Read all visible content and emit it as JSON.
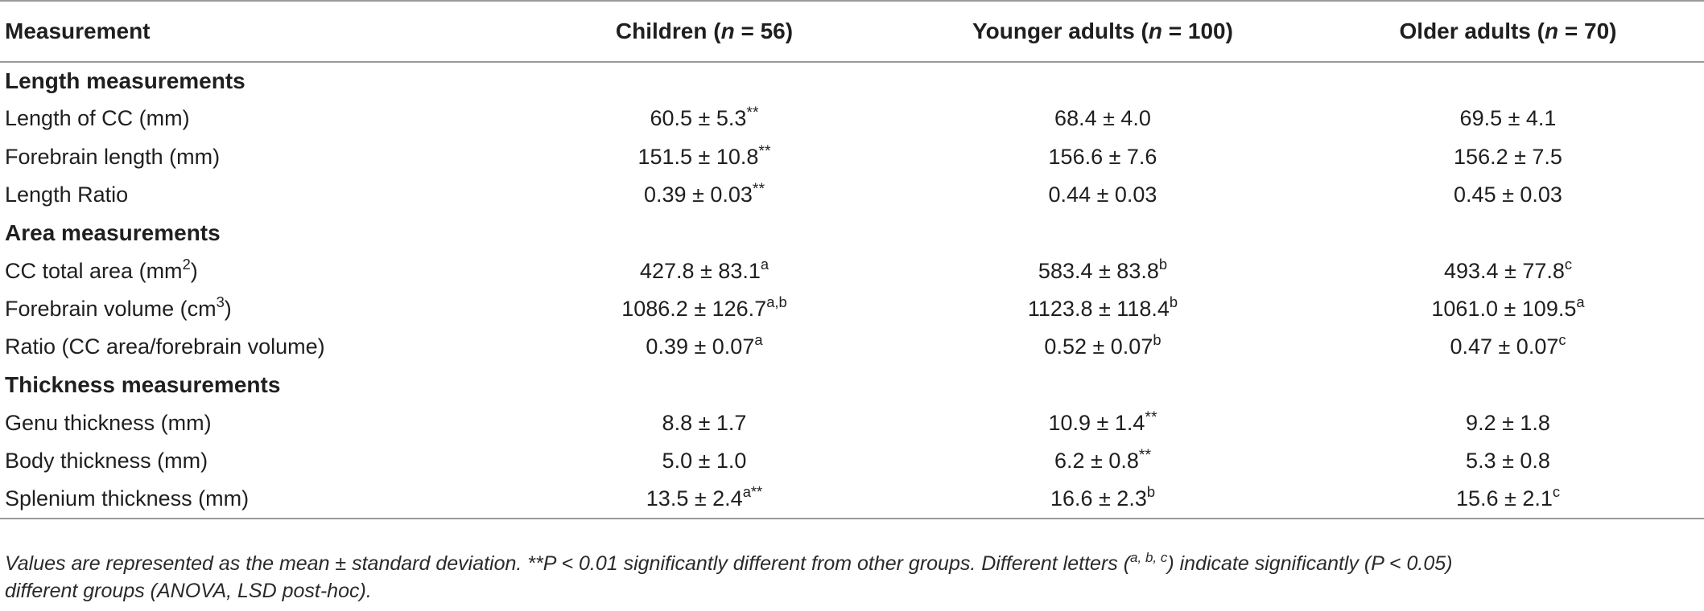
{
  "header": {
    "measurement": "Measurement",
    "children": "Children (",
    "children_n": "n",
    "children_count": " = 56)",
    "younger": "Younger adults (",
    "younger_n": "n",
    "younger_count": " = 100)",
    "older": "Older adults (",
    "older_n": "n",
    "older_count": " = 70)"
  },
  "sections": {
    "length": "Length measurements",
    "area": "Area measurements",
    "thickness": "Thickness measurements"
  },
  "rows": {
    "length_cc": {
      "label": "Length of CC (mm)",
      "children": "60.5 ± 5.3",
      "children_sup": "**",
      "younger": "68.4 ± 4.0",
      "older": "69.5 ± 4.1"
    },
    "forebrain_length": {
      "label": "Forebrain length (mm)",
      "children": "151.5 ± 10.8",
      "children_sup": "**",
      "younger": "156.6 ± 7.6",
      "older": "156.2 ± 7.5"
    },
    "length_ratio": {
      "label": "Length Ratio",
      "children": "0.39 ± 0.03",
      "children_sup": "**",
      "younger": "0.44 ± 0.03",
      "older": "0.45 ± 0.03"
    },
    "cc_total_area": {
      "label": "CC total area (mm",
      "label_sup": "2",
      "label_end": ")",
      "children": "427.8 ± 83.1",
      "children_sup": "a",
      "younger": "583.4 ± 83.8",
      "younger_sup": "b",
      "older": "493.4 ± 77.8",
      "older_sup": "c"
    },
    "forebrain_volume": {
      "label": "Forebrain volume (cm",
      "label_sup": "3",
      "label_end": ")",
      "children": "1086.2 ± 126.7",
      "children_sup": "a,b",
      "younger": "1123.8 ± 118.4",
      "younger_sup": "b",
      "older": "1061.0 ± 109.5",
      "older_sup": "a"
    },
    "area_ratio": {
      "label": "Ratio (CC area/forebrain volume)",
      "children": "0.39 ± 0.07",
      "children_sup": "a",
      "younger": "0.52 ± 0.07",
      "younger_sup": "b",
      "older": "0.47 ± 0.07",
      "older_sup": "c"
    },
    "genu": {
      "label": "Genu thickness (mm)",
      "children": "8.8 ± 1.7",
      "younger": "10.9 ± 1.4",
      "younger_sup": "**",
      "older": "9.2 ± 1.8"
    },
    "body": {
      "label": "Body thickness (mm)",
      "children": "5.0 ± 1.0",
      "younger": "6.2 ± 0.8",
      "younger_sup": "**",
      "older": "5.3 ± 0.8"
    },
    "splenium": {
      "label": "Splenium thickness (mm)",
      "children": "13.5 ± 2.4",
      "children_sup": "a**",
      "younger": "16.6 ± 2.3",
      "younger_sup": "b",
      "older": "15.6 ± 2.1",
      "older_sup": "c"
    }
  },
  "note": {
    "line1_a": "Values are represented as the mean ± standard deviation. **P < 0.01 significantly different from other groups. Different letters (",
    "line1_sup": "a, b, c",
    "line1_b": ") indicate significantly (P < 0.05)",
    "line2": "different groups (ANOVA, LSD post-hoc)."
  }
}
